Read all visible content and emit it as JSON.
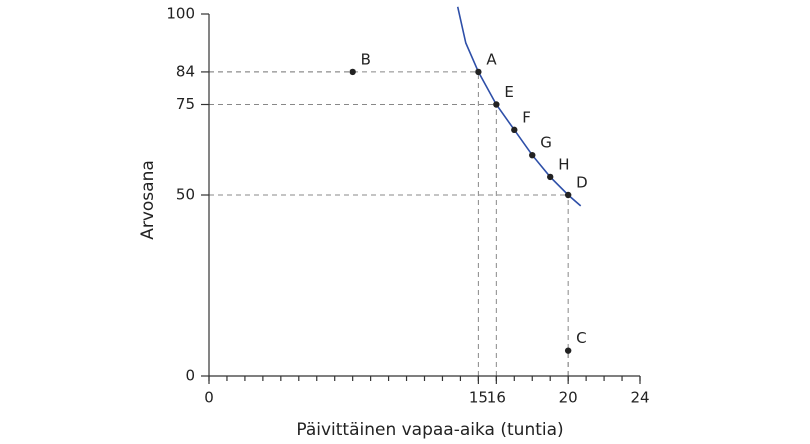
{
  "chart_data": {
    "type": "scatter",
    "x_label": "Päivittäinen vapaa-aika (tuntia)",
    "y_label": "Arvosana",
    "xlim": [
      0,
      24
    ],
    "xticks": [
      0,
      15,
      16,
      20,
      24
    ],
    "ylim": [
      0,
      100
    ],
    "yticks": [
      0,
      50,
      75,
      84,
      100
    ],
    "points": {
      "color": "#222222",
      "labels": [
        "A",
        "B",
        "C",
        "D",
        "E",
        "F",
        "G",
        "H"
      ],
      "x": [
        15,
        8,
        20,
        20,
        16,
        17,
        18,
        19
      ],
      "values": [
        84,
        84,
        7,
        50,
        75,
        68,
        61,
        55
      ]
    },
    "curve": {
      "color": "#2e4fa8",
      "x": [
        13.85,
        14.3,
        15,
        16,
        17,
        18,
        19,
        20,
        20.7
      ],
      "values": [
        102,
        92,
        84,
        75,
        68,
        61,
        55,
        50,
        47
      ]
    }
  }
}
